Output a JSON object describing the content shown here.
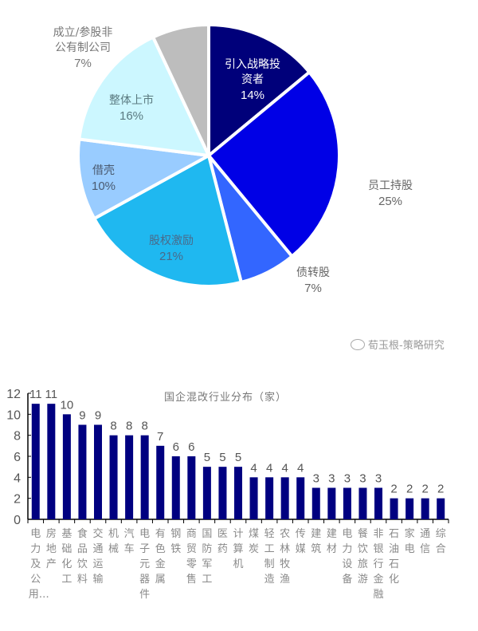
{
  "chart_data": [
    {
      "type": "pie",
      "title": "",
      "slices": [
        {
          "label": "引入战略投资者",
          "value": 14,
          "display": "14%",
          "color": "#00007a"
        },
        {
          "label": "员工持股",
          "value": 25,
          "display": "25%",
          "color": "#0000e6"
        },
        {
          "label": "债转股",
          "value": 7,
          "display": "7%",
          "color": "#3366ff"
        },
        {
          "label": "股权激励",
          "value": 21,
          "display": "21%",
          "color": "#1fb8f0"
        },
        {
          "label": "借壳",
          "value": 10,
          "display": "10%",
          "color": "#99ccff"
        },
        {
          "label": "整体上市",
          "value": 16,
          "display": "16%",
          "color": "#ccf7ff"
        },
        {
          "label": "成立/参股非公有制公司",
          "value": 7,
          "display": "7%",
          "color": "#bdbdbd"
        }
      ]
    },
    {
      "type": "bar",
      "title": "国企混改行业分布（家）",
      "xlabel": "",
      "ylabel": "",
      "ylim": [
        0,
        12
      ],
      "yticks": [
        0,
        2,
        4,
        6,
        8,
        10,
        12
      ],
      "grid": false,
      "bar_color": "#000080",
      "categories": [
        "电力及公用…",
        "房地产",
        "基础化工",
        "食品饮料",
        "交通运输",
        "机械",
        "汽车",
        "电子元器件",
        "有色金属",
        "钢铁",
        "商贸零售",
        "国防军工",
        "医药",
        "计算机",
        "煤炭",
        "轻工制造",
        "农林牧渔",
        "传媒",
        "建筑",
        "建材",
        "电力设备",
        "餐饮旅游",
        "非银行金融",
        "石油石化",
        "家电",
        "通信",
        "综合"
      ],
      "values": [
        11,
        11,
        10,
        9,
        9,
        8,
        8,
        8,
        7,
        6,
        6,
        5,
        5,
        5,
        4,
        4,
        4,
        4,
        3,
        3,
        3,
        3,
        3,
        2,
        2,
        2,
        2
      ]
    }
  ],
  "pie_labels": {
    "strategic": {
      "line1": "引入战略投",
      "line2": "资者",
      "pct": "14%"
    },
    "employee": {
      "line1": "员工持股",
      "pct": "25%"
    },
    "debt": {
      "line1": "债转股",
      "pct": "7%"
    },
    "equity": {
      "line1": "股权激励",
      "pct": "21%"
    },
    "backdoor": {
      "line1": "借壳",
      "pct": "10%"
    },
    "listing": {
      "line1": "整体上市",
      "pct": "16%"
    },
    "private": {
      "line1": "成立/参股非",
      "line2": "公有制公司",
      "pct": "7%"
    }
  },
  "watermark": {
    "icon": "wechat-icon",
    "text": "荀玉根-策略研究"
  },
  "bar_chart": {
    "title": "国企混改行业分布（家）",
    "xlabels": [
      {
        "text": "电力及公用",
        "ellipsis": "…"
      },
      {
        "text": "房地产"
      },
      {
        "text": "基础化工"
      },
      {
        "text": "食品饮料"
      },
      {
        "text": "交通运输"
      },
      {
        "text": "机械"
      },
      {
        "text": "汽车"
      },
      {
        "text": "电子元器件"
      },
      {
        "text": "有色金属"
      },
      {
        "text": "钢铁"
      },
      {
        "text": "商贸零售"
      },
      {
        "text": "国防军工"
      },
      {
        "text": "医药"
      },
      {
        "text": "计算机"
      },
      {
        "text": "煤炭"
      },
      {
        "text": "轻工制造"
      },
      {
        "text": "农林牧渔"
      },
      {
        "text": "传媒"
      },
      {
        "text": "建筑"
      },
      {
        "text": "建材"
      },
      {
        "text": "电力设备"
      },
      {
        "text": "餐饮旅游"
      },
      {
        "text": "非银行金融"
      },
      {
        "text": "石油石化"
      },
      {
        "text": "家电"
      },
      {
        "text": "通信"
      },
      {
        "text": "综合"
      }
    ]
  }
}
